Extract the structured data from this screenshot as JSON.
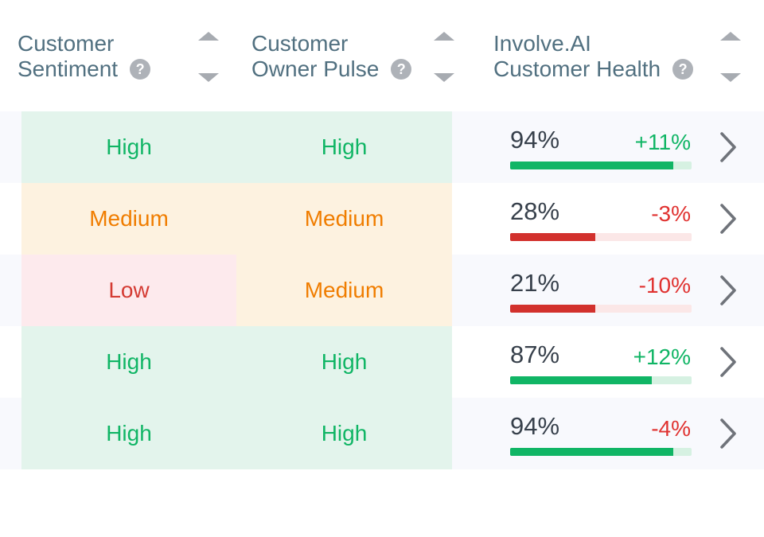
{
  "table": {
    "headers": [
      {
        "line1": "Customer",
        "line2": "Sentiment"
      },
      {
        "line1": "Customer",
        "line2": "Owner Pulse"
      },
      {
        "line1": "Involve.AI",
        "line2": "Customer Health"
      }
    ],
    "help_glyph": "?",
    "rows": [
      {
        "sentiment": {
          "label": "High",
          "level": "high"
        },
        "owner_pulse": {
          "label": "High",
          "level": "high"
        },
        "health": {
          "score_label": "94%",
          "score_value": 94,
          "delta_label": "+11%",
          "delta_direction": "up",
          "bar_color": "green",
          "bar_fill_pct": 90
        }
      },
      {
        "sentiment": {
          "label": "Medium",
          "level": "medium"
        },
        "owner_pulse": {
          "label": "Medium",
          "level": "medium"
        },
        "health": {
          "score_label": "28%",
          "score_value": 28,
          "delta_label": "-3%",
          "delta_direction": "down",
          "bar_color": "red",
          "bar_fill_pct": 47
        }
      },
      {
        "sentiment": {
          "label": "Low",
          "level": "low"
        },
        "owner_pulse": {
          "label": "Medium",
          "level": "medium"
        },
        "health": {
          "score_label": "21%",
          "score_value": 21,
          "delta_label": "-10%",
          "delta_direction": "down",
          "bar_color": "red",
          "bar_fill_pct": 47
        }
      },
      {
        "sentiment": {
          "label": "High",
          "level": "high"
        },
        "owner_pulse": {
          "label": "High",
          "level": "high"
        },
        "health": {
          "score_label": "87%",
          "score_value": 87,
          "delta_label": "+12%",
          "delta_direction": "up",
          "bar_color": "green",
          "bar_fill_pct": 78
        }
      },
      {
        "sentiment": {
          "label": "High",
          "level": "high"
        },
        "owner_pulse": {
          "label": "High",
          "level": "high"
        },
        "health": {
          "score_label": "94%",
          "score_value": 94,
          "delta_label": "-4%",
          "delta_direction": "down",
          "bar_color": "green",
          "bar_fill_pct": 90
        }
      }
    ]
  },
  "colors": {
    "header_text": "#517080",
    "positive_green": "#10b565",
    "green_cell_bg": "#e3f4ec",
    "warning_orange": "#f07d00",
    "orange_cell_bg": "#fdf2e0",
    "low_red_text": "#d43b33",
    "negative_red": "#e03230",
    "red_bar": "#d2312d",
    "red_cell_bg": "#fdeaed",
    "score_text": "#37404b",
    "alt_row_bg": "#f8f9fd"
  }
}
